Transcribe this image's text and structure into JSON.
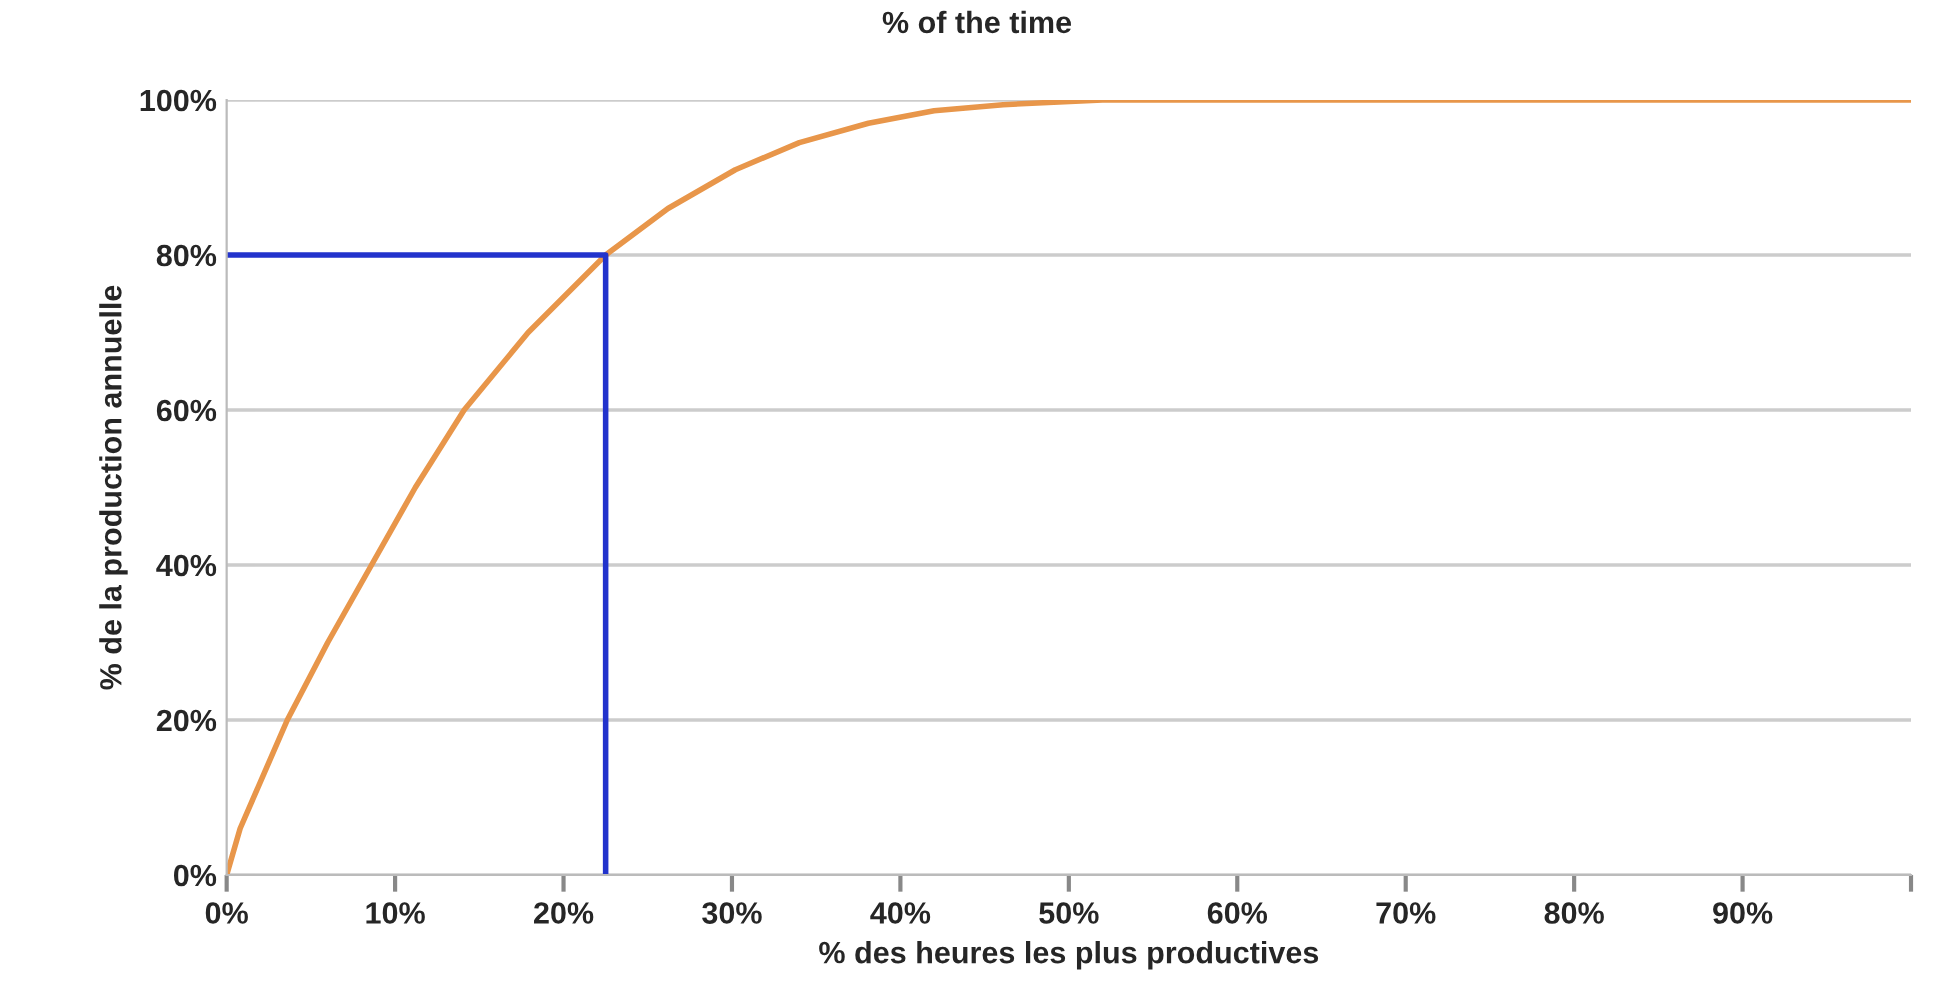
{
  "chart_data": {
    "type": "line",
    "title": "% of the time",
    "xlabel": "% des heures les plus productives",
    "ylabel": "% de la production annuelle",
    "series": [
      {
        "color": "#e8964a",
        "x": [
          0,
          0.8,
          3.6,
          6.0,
          8.6,
          11.2,
          14.1,
          17.9,
          22.5,
          26.2,
          30.2,
          34,
          38.1,
          42,
          46.1,
          52,
          60,
          70,
          80,
          90,
          100
        ],
        "values": [
          0,
          6,
          20,
          30,
          40,
          50,
          60,
          70,
          80,
          86,
          91,
          94.5,
          97,
          98.6,
          99.4,
          100,
          100,
          100,
          100,
          100,
          100
        ]
      },
      {
        "color": "#2233cc",
        "x": [
          0,
          22.5,
          22.5
        ],
        "values": [
          80,
          80,
          0
        ]
      }
    ],
    "xlim": [
      0,
      100
    ],
    "ylim": [
      0,
      100
    ],
    "xticks": [
      {
        "value": 0,
        "label": "0%"
      },
      {
        "value": 10,
        "label": "10%"
      },
      {
        "value": 20,
        "label": "20%"
      },
      {
        "value": 30,
        "label": "30%"
      },
      {
        "value": 40,
        "label": "40%"
      },
      {
        "value": 50,
        "label": "50%"
      },
      {
        "value": 60,
        "label": "60%"
      },
      {
        "value": 70,
        "label": "70%"
      },
      {
        "value": 80,
        "label": "80%"
      },
      {
        "value": 90,
        "label": "90%"
      },
      {
        "value": 100,
        "label": null
      }
    ],
    "yticks": [
      {
        "value": 0,
        "label": "0%"
      },
      {
        "value": 20,
        "label": "20%"
      },
      {
        "value": 40,
        "label": "40%"
      },
      {
        "value": 60,
        "label": "60%"
      },
      {
        "value": 80,
        "label": "80%"
      },
      {
        "value": 100,
        "label": "100%"
      }
    ],
    "grid": "y",
    "legend": false
  }
}
